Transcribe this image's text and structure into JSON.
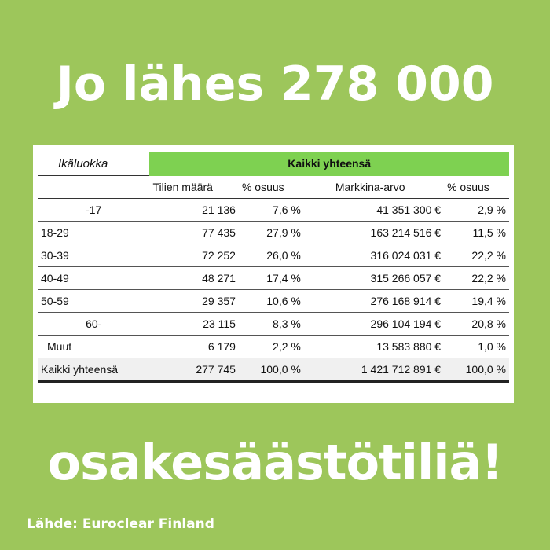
{
  "headline_top": "Jo lähes 278 000",
  "headline_bottom": "osakesäästötiliä!",
  "source": "Lähde: Euroclear Finland",
  "table": {
    "age_header": "Ikäluokka",
    "group_header": "Kaikki yhteensä",
    "columns": [
      "Tilien määrä",
      "% osuus",
      "Markkina-arvo",
      "% osuus"
    ],
    "rows": [
      {
        "age": "-17",
        "accounts": "21 136",
        "acc_share": "7,6 %",
        "value": "41 351 300 €",
        "val_share": "2,9 %"
      },
      {
        "age": "18-29",
        "accounts": "77 435",
        "acc_share": "27,9 %",
        "value": "163 214 516 €",
        "val_share": "11,5 %"
      },
      {
        "age": "30-39",
        "accounts": "72 252",
        "acc_share": "26,0 %",
        "value": "316 024 031 €",
        "val_share": "22,2 %"
      },
      {
        "age": "40-49",
        "accounts": "48 271",
        "acc_share": "17,4 %",
        "value": "315 266 057 €",
        "val_share": "22,2 %"
      },
      {
        "age": "50-59",
        "accounts": "29 357",
        "acc_share": "10,6 %",
        "value": "276 168 914 €",
        "val_share": "19,4 %"
      },
      {
        "age": "60-",
        "accounts": "23 115",
        "acc_share": "8,3 %",
        "value": "296 104 194 €",
        "val_share": "20,8 %"
      },
      {
        "age": "Muut",
        "accounts": "6 179",
        "acc_share": "2,2 %",
        "value": "13 583 880 €",
        "val_share": "1,0 %"
      }
    ],
    "total": {
      "age": "Kaikki yhteensä",
      "accounts": "277 745",
      "acc_share": "100,0 %",
      "value": "1 421 712 891 €",
      "val_share": "100,0 %"
    }
  },
  "colors": {
    "background": "#9dc65b",
    "header_green": "#7ed151",
    "text_white": "#ffffff"
  }
}
